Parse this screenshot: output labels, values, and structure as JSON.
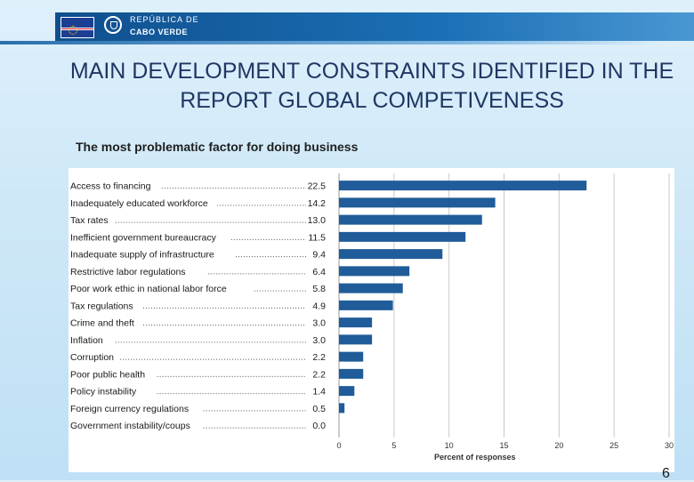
{
  "header": {
    "republic_label": "REPÚBLICA DE",
    "country_label": "CABO VERDE",
    "flag_icon": "cape-verde-flag-icon",
    "emblem_icon": "national-emblem-icon",
    "colors": {
      "band": "#1b6fb5",
      "title": "#1f3763"
    }
  },
  "slide": {
    "title": "MAIN DEVELOPMENT CONSTRAINTS IDENTIFIED IN THE REPORT GLOBAL COMPETIVENESS",
    "subtitle": "The most problematic factor for doing business",
    "page_number": "6"
  },
  "chart_data": {
    "type": "bar",
    "orientation": "horizontal",
    "title": "The most problematic factor for doing business",
    "xlabel": "Percent of responses",
    "ylabel": "",
    "xlim": [
      0,
      30
    ],
    "xticks": [
      0,
      5,
      10,
      15,
      20,
      25,
      30
    ],
    "grid": true,
    "bar_color": "#1f5c99",
    "categories": [
      "Access to financing",
      "Inadequately educated workforce",
      "Tax rates",
      "Inefficient government bureaucracy",
      "Inadequate supply of infrastructure",
      "Restrictive labor regulations",
      "Poor work ethic in national labor force",
      "Tax regulations",
      "Crime and theft",
      "Inflation",
      "Corruption",
      "Poor public health",
      "Policy instability",
      "Foreign currency regulations",
      "Government instability/coups"
    ],
    "values": [
      22.5,
      14.2,
      13.0,
      11.5,
      9.4,
      6.4,
      5.8,
      4.9,
      3.0,
      3.0,
      2.2,
      2.2,
      1.4,
      0.5,
      0.0
    ],
    "value_labels": [
      "22.5",
      "14.2",
      "13.0",
      "11.5",
      "9.4",
      "6.4",
      "5.8",
      "4.9",
      "3.0",
      "3.0",
      "2.2",
      "2.2",
      "1.4",
      "0.5",
      "0.0"
    ]
  }
}
